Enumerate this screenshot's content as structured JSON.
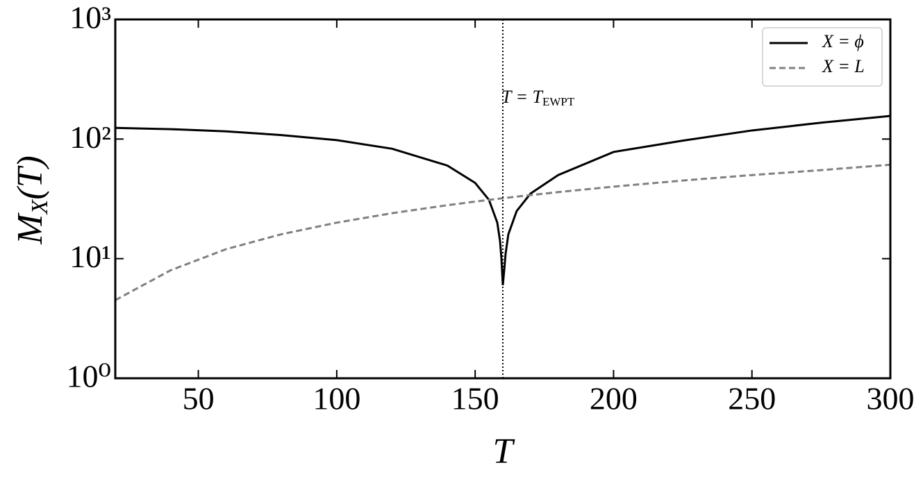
{
  "chart_data": {
    "type": "line",
    "xlabel": "T",
    "ylabel": [
      "M",
      "X",
      "(T)"
    ],
    "x": [
      20,
      40,
      60,
      80,
      100,
      120,
      140,
      150,
      155,
      158,
      159,
      159.5,
      160,
      160.5,
      161,
      162,
      165,
      170,
      180,
      200,
      225,
      250,
      275,
      300
    ],
    "series": [
      {
        "name": "X = ϕ",
        "color": "#000000",
        "dash": false,
        "values": [
          124,
          121,
          116,
          108,
          98,
          83,
          60,
          43,
          31,
          20,
          14,
          10,
          6,
          8,
          11,
          16,
          25,
          35,
          50,
          78,
          97,
          118,
          137,
          156
        ]
      },
      {
        "name": "X = L",
        "color": "#808080",
        "dash": true,
        "values": [
          4.5,
          8,
          12,
          16,
          20,
          24,
          28,
          30,
          31,
          31.6,
          31.8,
          31.9,
          32,
          32.1,
          32.2,
          32.4,
          33,
          34,
          36,
          40,
          45,
          50,
          55,
          61
        ]
      }
    ],
    "xlim": [
      20,
      300
    ],
    "xticks": [
      50,
      100,
      150,
      200,
      250,
      300
    ],
    "ylim": [
      1,
      1000
    ],
    "yscale": "log",
    "yticks": [
      {
        "value": 1,
        "label": "10⁰"
      },
      {
        "value": 10,
        "label": "10¹"
      },
      {
        "value": 100,
        "label": "10²"
      },
      {
        "value": 1000,
        "label": "10³"
      }
    ],
    "vline": {
      "x": 160,
      "text": "T = T",
      "subscript": "EWPT"
    },
    "legend": "upper right"
  }
}
